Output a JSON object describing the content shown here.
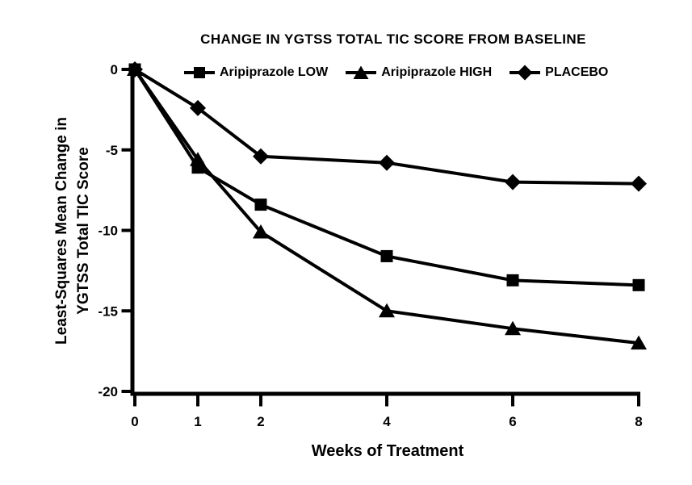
{
  "chart_data": {
    "type": "line",
    "title": "CHANGE IN YGTSS TOTAL TIC SCORE FROM BASELINE",
    "xlabel": "Weeks of Treatment",
    "ylabel_line1": "Least-Squares Mean Change in",
    "ylabel_line2": "YGTSS Total TIC Score",
    "x": [
      0,
      1,
      2,
      4,
      6,
      8
    ],
    "x_tick_labels": [
      "0",
      "1",
      "2",
      "4",
      "6",
      "8"
    ],
    "y_tick_values": [
      0,
      -5,
      -10,
      -15,
      -20
    ],
    "y_tick_labels": [
      "0",
      "-5",
      "-10",
      "-15",
      "-20"
    ],
    "xlim": [
      0,
      8
    ],
    "ylim": [
      -20,
      0
    ],
    "grid": false,
    "legend_position": "top-inside",
    "background": "#ffffff",
    "axis_color": "#000000",
    "series": [
      {
        "name": "Aripiprazole LOW",
        "marker": "square",
        "color": "#000000",
        "values": [
          0,
          -6.1,
          -8.4,
          -11.6,
          -13.1,
          -13.4
        ]
      },
      {
        "name": "Aripiprazole HIGH",
        "marker": "triangle",
        "color": "#000000",
        "values": [
          0,
          -5.6,
          -10.1,
          -15.0,
          -16.1,
          -17.0
        ]
      },
      {
        "name": "PLACEBO",
        "marker": "diamond",
        "color": "#000000",
        "values": [
          0,
          -2.4,
          -5.4,
          -5.8,
          -7.0,
          -7.1
        ]
      }
    ]
  }
}
